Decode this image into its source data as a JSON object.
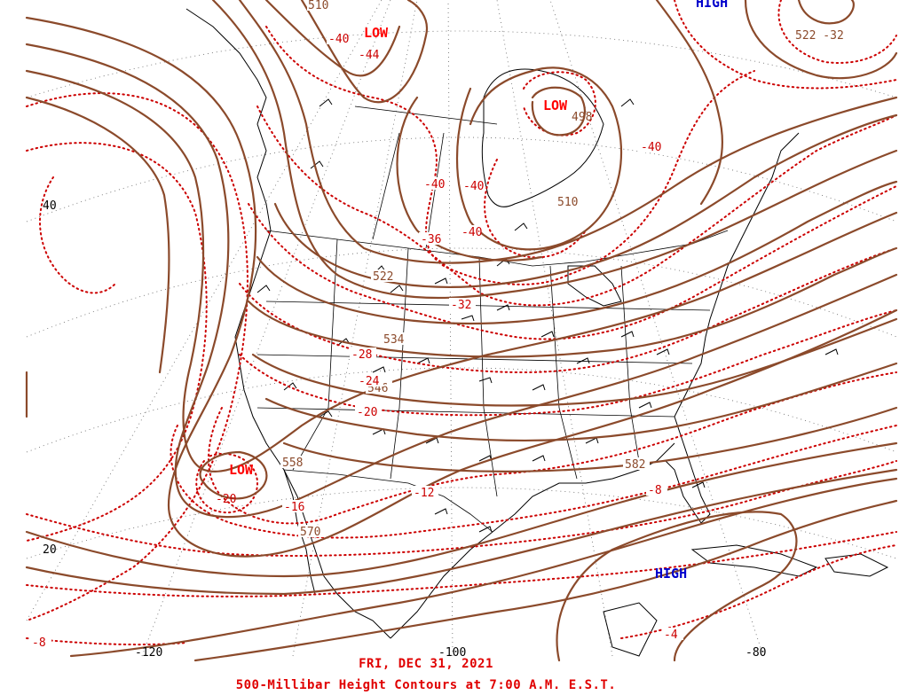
{
  "map": {
    "date_caption": "FRI, DEC 31, 2021",
    "title_caption": "500-Millibar Height Contours at 7:00 A.M. E.S.T.",
    "colors": {
      "height_contour": "#8b4a2b",
      "temperature_contour": "#cc0000",
      "low_label": "#ff0000",
      "high_label": "#0000cc",
      "coastline": "#000000",
      "graticule": "#555555"
    },
    "pressure_centers": [
      {
        "type": "LOW",
        "label": "LOW",
        "height": "",
        "temp": "-44"
      },
      {
        "type": "LOW",
        "label": "LOW",
        "height": "498",
        "temp": ""
      },
      {
        "type": "LOW",
        "label": "LOW",
        "height": "",
        "temp": "-20"
      },
      {
        "type": "HIGH",
        "label": "HIGH",
        "height": "",
        "temp": ""
      },
      {
        "type": "HIGH",
        "label": "HIGH",
        "height": "",
        "temp": ""
      }
    ],
    "height_labels": [
      "510",
      "522",
      "32",
      "510",
      "522",
      "534",
      "546",
      "558",
      "570",
      "582"
    ],
    "temperature_labels": [
      "-40",
      "-44",
      "-40",
      "-40",
      "-40",
      "-36",
      "-40",
      "-32",
      "-28",
      "-24",
      "-20",
      "-12",
      "-16",
      "-20",
      "-8",
      "-4",
      "-8"
    ],
    "latitude_labels": [
      "40",
      "20"
    ],
    "longitude_labels": [
      "-120",
      "-100",
      "-80"
    ],
    "top_right_label": "522 -32",
    "partial_high_label": "HIGH"
  }
}
